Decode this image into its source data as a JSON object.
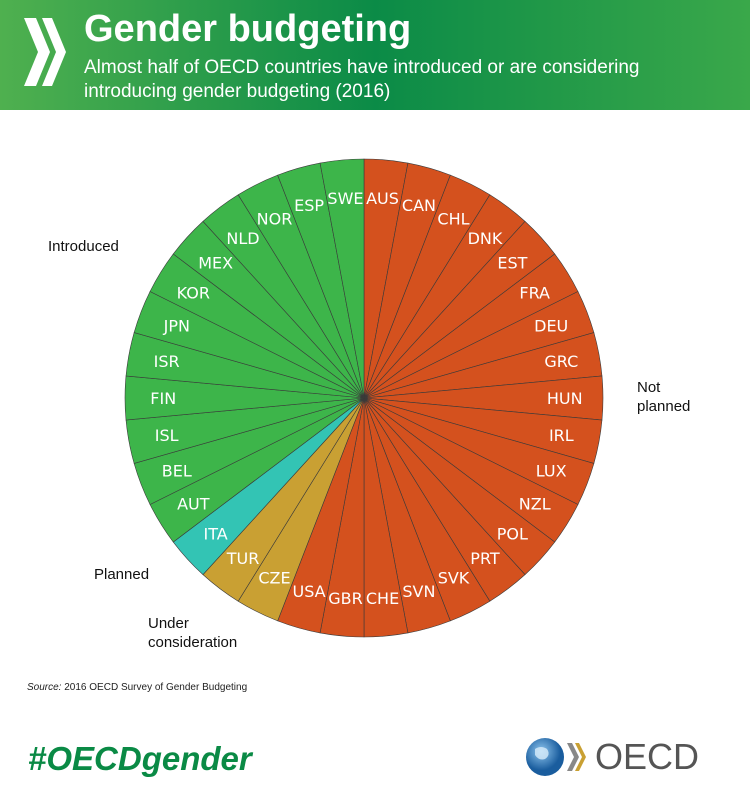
{
  "header": {
    "title": "Gender budgeting",
    "subtitle": "Almost half of OECD countries have introduced or are considering introducing gender budgeting (2016)"
  },
  "chart_data": {
    "type": "pie",
    "title": "Gender budgeting",
    "subtitle": "Almost half of OECD countries have introduced or are considering introducing gender budgeting (2016)",
    "categories": [
      {
        "name": "Not planned",
        "label": "Not\nplanned",
        "color": "#d4511e",
        "countries": [
          "AUS",
          "CAN",
          "CHL",
          "DNK",
          "EST",
          "FRA",
          "DEU",
          "GRC",
          "HUN",
          "IRL",
          "LUX",
          "NZL",
          "POL",
          "PRT",
          "SVK",
          "SVN",
          "CHE",
          "GBR",
          "USA"
        ]
      },
      {
        "name": "Under consideration",
        "label": "Under\nconsideration",
        "color": "#c9a033",
        "countries": [
          "CZE",
          "TUR"
        ]
      },
      {
        "name": "Planned",
        "label": "Planned",
        "color": "#33c4b4",
        "countries": [
          "ITA"
        ]
      },
      {
        "name": "Introduced",
        "label": "Introduced",
        "color": "#3db54a",
        "countries": [
          "AUT",
          "BEL",
          "ISL",
          "FIN",
          "ISR",
          "JPN",
          "KOR",
          "MEX",
          "NLD",
          "NOR",
          "ESP",
          "SWE"
        ]
      }
    ],
    "slice_value": 1
  },
  "footer": {
    "source_prefix": "Source:",
    "source_text": " 2016 OECD Survey of Gender Budgeting",
    "hashtag": "#OECDgender",
    "logo_text": "OECD"
  }
}
